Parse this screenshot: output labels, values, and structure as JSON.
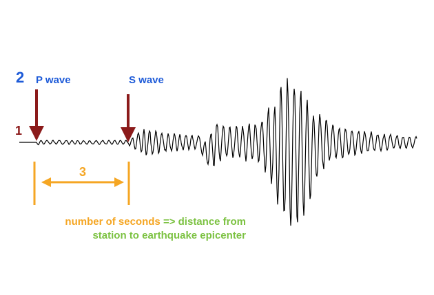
{
  "labels": {
    "step_2": "2",
    "p_wave": "P wave",
    "s_wave": "S wave",
    "step_1": "1",
    "step_3": "3"
  },
  "caption": {
    "orange_part": "number of seconds",
    "arrow": "=>",
    "green_part": "distance from",
    "line_2": "station to earthquake epicenter"
  }
}
